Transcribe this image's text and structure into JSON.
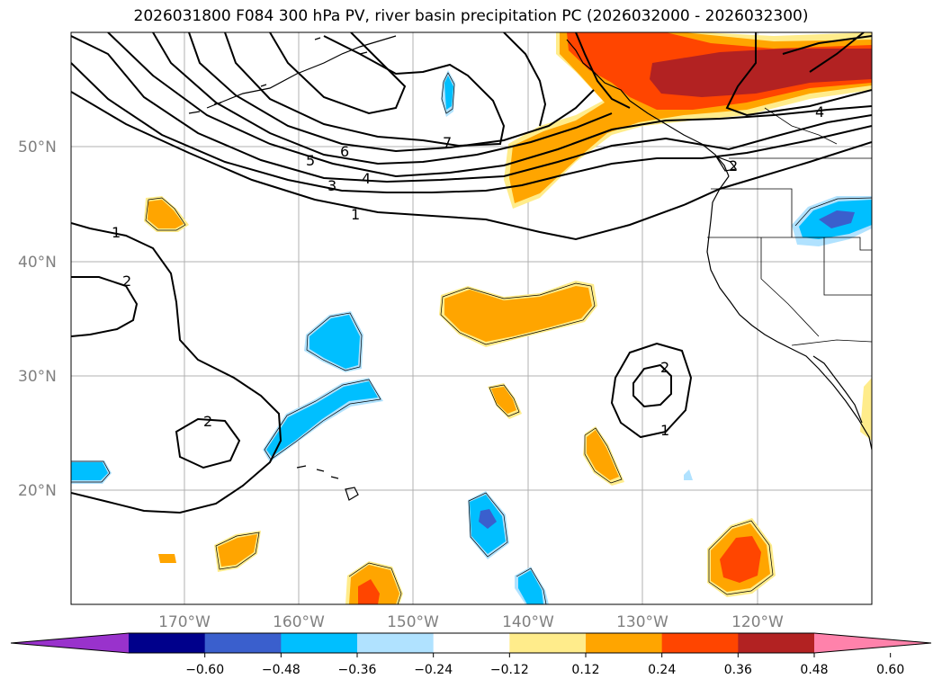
{
  "title": "2026031800 F084 300 hPa PV, river basin precipitation PC (2026032000 - 2026032300)",
  "latitude_labels": [
    "50°N",
    "40°N",
    "30°N",
    "20°N"
  ],
  "longitude_labels": [
    "170°W",
    "160°W",
    "150°W",
    "140°W",
    "130°W",
    "120°W"
  ],
  "contour_labels": [
    "1",
    "2",
    "2",
    "3",
    "4",
    "5",
    "6",
    "7",
    "1",
    "4",
    "2",
    "1",
    "2"
  ],
  "colorbar": {
    "extend": "both",
    "tick_labels": [
      "−0.60",
      "−0.48",
      "−0.36",
      "−0.24",
      "−0.12",
      "0.12",
      "0.24",
      "0.36",
      "0.48",
      "0.60"
    ],
    "colors": [
      "#9932cc",
      "#00008b",
      "#3a5fcd",
      "#00bfff",
      "#b0e2ff",
      "#ffffff",
      "#ffec8b",
      "#ffa500",
      "#ff4500",
      "#b22222",
      "#ff82ab"
    ]
  },
  "colors": {
    "contour": "#000000",
    "grid": "#b0b0b0",
    "coast": "#000000",
    "label_gray": "#808080"
  }
}
